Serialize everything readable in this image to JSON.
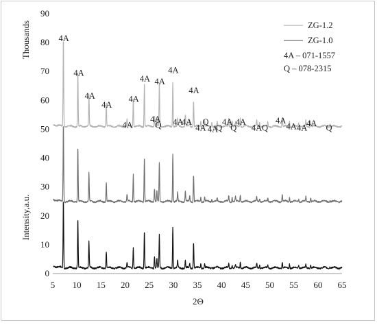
{
  "chart_data": {
    "type": "line",
    "xlabel": "2Θ",
    "ylabel": "Intensity,a.u.",
    "y_unit_label": "Thousands",
    "xlim": [
      5,
      65
    ],
    "ylim": [
      0,
      90
    ],
    "x_ticks": [
      5,
      10,
      15,
      20,
      25,
      30,
      35,
      40,
      45,
      50,
      55,
      60,
      65
    ],
    "y_ticks": [
      0,
      10,
      20,
      30,
      40,
      50,
      60,
      70,
      80,
      90
    ],
    "legend_position": "top-right",
    "reference_lines": [
      "4A – 071-1557",
      "Q – 078-2315"
    ],
    "peaks_x": [
      7.2,
      10.2,
      12.5,
      16.1,
      20.4,
      21.7,
      24.0,
      26.1,
      26.6,
      27.1,
      29.9,
      30.9,
      32.5,
      33.4,
      34.2,
      35.7,
      36.5,
      38.0,
      39.1,
      41.5,
      42.2,
      42.9,
      43.9,
      47.3,
      47.9,
      49.6,
      52.6,
      54.1,
      56.0,
      57.5,
      58.5,
      62.5
    ],
    "series": [
      {
        "name": "ZG-1.2",
        "color": "#b4b4b4",
        "baseline": 51,
        "peak_heights": [
          31,
          19,
          11,
          8,
          2.5,
          9.5,
          15.5,
          3.5,
          2.5,
          15,
          15.5,
          2.5,
          4,
          2,
          9,
          2,
          2,
          1.5,
          1.5,
          2.5,
          2,
          1.5,
          3,
          2,
          1.5,
          1.5,
          3,
          2,
          1.5,
          2,
          2,
          1
        ]
      },
      {
        "name": "ZG-1.0",
        "color": "#707070",
        "baseline": 25,
        "peak_heights": [
          27,
          19,
          10,
          6.5,
          2.5,
          9.5,
          15.5,
          4.5,
          3.5,
          13.5,
          16.5,
          3,
          3.5,
          2,
          9.5,
          1.5,
          1.5,
          1,
          1,
          2,
          1.5,
          1.5,
          2.5,
          1.5,
          1,
          1,
          2.5,
          1.5,
          1,
          1.5,
          1.5,
          0.5
        ]
      },
      {
        "name": "",
        "color": "#111111",
        "baseline": 2,
        "peak_heights": [
          24,
          17,
          9,
          5.5,
          2,
          7.5,
          13,
          4,
          3,
          11.5,
          14.5,
          2.5,
          2.5,
          1.5,
          9,
          1.5,
          1.5,
          0.5,
          0.5,
          1.5,
          1,
          1,
          2,
          1.5,
          1,
          1,
          2,
          1.5,
          1,
          1,
          1.2,
          0.5
        ]
      }
    ],
    "annotations": [
      {
        "text": "4A",
        "x": 7.3,
        "y": 80.5
      },
      {
        "text": "4A",
        "x": 10.4,
        "y": 68.5
      },
      {
        "text": "4A",
        "x": 12.7,
        "y": 60.5
      },
      {
        "text": "4A",
        "x": 16.2,
        "y": 57.5
      },
      {
        "text": "4A",
        "x": 20.5,
        "y": 50.5
      },
      {
        "text": "4A",
        "x": 21.8,
        "y": 59.5
      },
      {
        "text": "4A",
        "x": 24.1,
        "y": 66.5
      },
      {
        "text": "4A",
        "x": 26.3,
        "y": 52.5
      },
      {
        "text": "Q",
        "x": 26.9,
        "y": 50.5
      },
      {
        "text": "4A",
        "x": 27.2,
        "y": 65.5
      },
      {
        "text": "4A",
        "x": 30.0,
        "y": 69.5
      },
      {
        "text": "4A",
        "x": 31.0,
        "y": 51.5
      },
      {
        "text": "4A",
        "x": 32.8,
        "y": 51.5
      },
      {
        "text": "4A",
        "x": 34.3,
        "y": 62.5
      },
      {
        "text": "4A",
        "x": 35.7,
        "y": 49.5
      },
      {
        "text": "Q",
        "x": 36.7,
        "y": 51.5
      },
      {
        "text": "4A",
        "x": 38.2,
        "y": 49
      },
      {
        "text": "Q",
        "x": 39.5,
        "y": 49.5
      },
      {
        "text": "4A",
        "x": 41.2,
        "y": 51.5
      },
      {
        "text": "Q",
        "x": 42.5,
        "y": 49.5
      },
      {
        "text": "4A",
        "x": 44.0,
        "y": 51.5
      },
      {
        "text": "4A",
        "x": 47.3,
        "y": 49.5
      },
      {
        "text": "Q",
        "x": 49.0,
        "y": 49.5
      },
      {
        "text": "4A",
        "x": 52.3,
        "y": 52
      },
      {
        "text": "4A",
        "x": 54.5,
        "y": 50
      },
      {
        "text": "4A",
        "x": 56.7,
        "y": 49.5
      },
      {
        "text": "4A",
        "x": 58.7,
        "y": 51
      },
      {
        "text": "Q",
        "x": 62.3,
        "y": 49.5
      }
    ]
  }
}
